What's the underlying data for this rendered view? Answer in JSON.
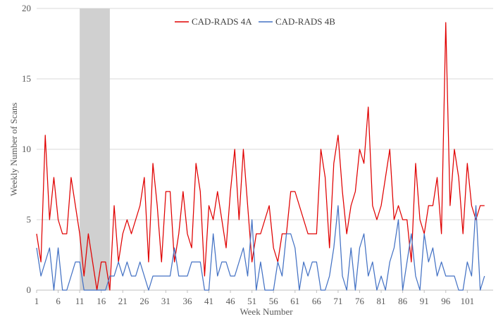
{
  "chart_data": {
    "type": "line",
    "title": "",
    "xlabel": "Week Number",
    "ylabel": "Weekly Number of Scans",
    "ylim": [
      0,
      20
    ],
    "yticks": [
      0,
      5,
      10,
      15,
      20
    ],
    "xticks": [
      1,
      6,
      11,
      16,
      21,
      26,
      31,
      36,
      41,
      46,
      51,
      56,
      61,
      66,
      71,
      76,
      81,
      86,
      91,
      96,
      101
    ],
    "x_range": [
      1,
      107
    ],
    "shaded_region": {
      "from_week": 11,
      "to_week": 18,
      "color": "#d0d0d0"
    },
    "gridlines": true,
    "legend_position": "top-center",
    "series": [
      {
        "name": "CAD-RADS 4A",
        "color": "#e00000",
        "values": [
          4,
          2,
          11,
          5,
          8,
          5,
          4,
          4,
          8,
          6,
          4,
          1,
          4,
          2,
          0,
          2,
          2,
          0,
          6,
          2,
          4,
          5,
          4,
          5,
          6,
          8,
          2,
          9,
          6,
          2,
          7,
          7,
          2,
          4,
          7,
          4,
          3,
          9,
          7,
          1,
          6,
          5,
          7,
          5,
          3,
          7,
          10,
          5,
          10,
          6,
          2,
          4,
          4,
          5,
          6,
          3,
          2,
          4,
          4,
          7,
          7,
          6,
          5,
          4,
          4,
          4,
          10,
          8,
          3,
          9,
          11,
          7,
          4,
          6,
          7,
          10,
          9,
          13,
          6,
          5,
          6,
          8,
          10,
          5,
          6,
          5,
          5,
          2,
          9,
          5,
          4,
          6,
          6,
          8,
          4,
          19,
          6,
          10,
          8,
          4,
          9,
          6,
          5,
          6,
          6
        ]
      },
      {
        "name": "CAD-RADS 4B",
        "color": "#4472c4",
        "values": [
          3,
          1,
          2,
          3,
          0,
          3,
          0,
          0,
          1,
          2,
          2,
          0,
          0,
          0,
          0,
          0,
          0,
          1,
          1,
          2,
          1,
          2,
          1,
          1,
          2,
          1,
          0,
          1,
          1,
          1,
          1,
          1,
          3,
          1,
          1,
          1,
          2,
          2,
          2,
          0,
          0,
          4,
          1,
          2,
          2,
          1,
          1,
          2,
          3,
          1,
          5,
          0,
          2,
          0,
          0,
          0,
          2,
          1,
          4,
          4,
          3,
          0,
          2,
          1,
          2,
          2,
          0,
          0,
          1,
          3,
          6,
          1,
          0,
          3,
          0,
          3,
          4,
          1,
          2,
          0,
          1,
          0,
          2,
          3,
          5,
          0,
          2,
          4,
          1,
          0,
          4,
          2,
          3,
          1,
          2,
          1,
          1,
          1,
          0,
          0,
          2,
          1,
          6,
          0,
          1
        ]
      }
    ]
  }
}
